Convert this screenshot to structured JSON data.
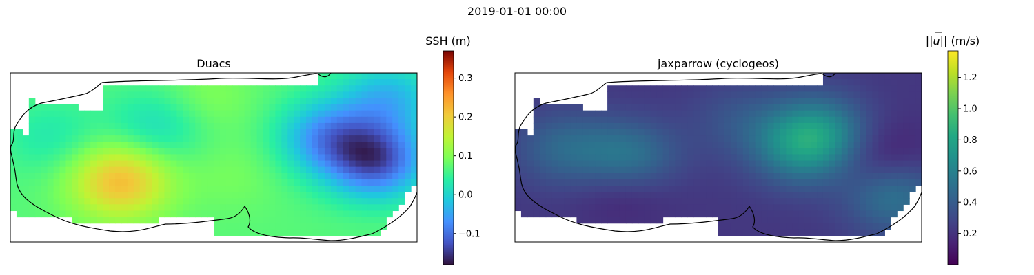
{
  "figure": {
    "suptitle": "2019-01-01 00:00"
  },
  "chart_data": [
    {
      "type": "heatmap",
      "title": "Duacs",
      "colormap": "turbo",
      "colorbar": {
        "label": "SSH (m)",
        "range": [
          -0.18,
          0.37
        ],
        "ticks": [
          -0.1,
          0.0,
          0.1,
          0.2,
          0.3
        ],
        "tick_labels": [
          "−0.1",
          "0.0",
          "0.1",
          "0.2",
          "0.3"
        ]
      },
      "features": [
        {
          "kind": "high",
          "x": 0.27,
          "y": 0.64,
          "value": 0.22
        },
        {
          "kind": "low",
          "x": 0.9,
          "y": 0.52,
          "value": -0.12
        },
        {
          "kind": "low",
          "x": 0.78,
          "y": 0.38,
          "value": -0.06
        },
        {
          "kind": "low",
          "x": 0.93,
          "y": 0.15,
          "value": -0.03
        },
        {
          "kind": "low",
          "x": 0.36,
          "y": 0.32,
          "value": 0.01
        },
        {
          "kind": "low",
          "x": 0.1,
          "y": 0.38,
          "value": 0.03
        },
        {
          "kind": "high",
          "x": 0.55,
          "y": 0.6,
          "value": 0.09
        },
        {
          "kind": "high",
          "x": 0.48,
          "y": 0.15,
          "value": 0.1
        }
      ],
      "background_value": 0.07,
      "grid_on": false
    },
    {
      "type": "heatmap",
      "title": "jaxparrow (cyclogeos)",
      "colormap": "viridis",
      "colorbar": {
        "label": "||ū|| (m/s)",
        "label_base": "||",
        "label_vec": "u",
        "label_tail": "|| (m/s)",
        "range": [
          0.0,
          1.37
        ],
        "ticks": [
          0.2,
          0.4,
          0.6,
          0.8,
          1.0,
          1.2
        ],
        "tick_labels": [
          "0.2",
          "0.4",
          "0.6",
          "0.8",
          "1.0",
          "1.2"
        ]
      },
      "features": [
        {
          "kind": "band",
          "x": 0.28,
          "y": 0.52,
          "value": 0.62
        },
        {
          "kind": "band",
          "x": 0.7,
          "y": 0.45,
          "value": 0.55
        },
        {
          "kind": "band",
          "x": 0.75,
          "y": 0.35,
          "value": 0.6
        },
        {
          "kind": "band",
          "x": 0.93,
          "y": 0.72,
          "value": 0.55
        },
        {
          "kind": "band",
          "x": 0.12,
          "y": 0.45,
          "value": 0.45
        },
        {
          "kind": "band",
          "x": 0.55,
          "y": 0.28,
          "value": 0.35
        },
        {
          "kind": "low",
          "x": 0.27,
          "y": 0.64,
          "value": 0.02
        },
        {
          "kind": "low",
          "x": 0.9,
          "y": 0.52,
          "value": 0.05
        }
      ],
      "background_value": 0.22,
      "grid_on": false
    }
  ]
}
